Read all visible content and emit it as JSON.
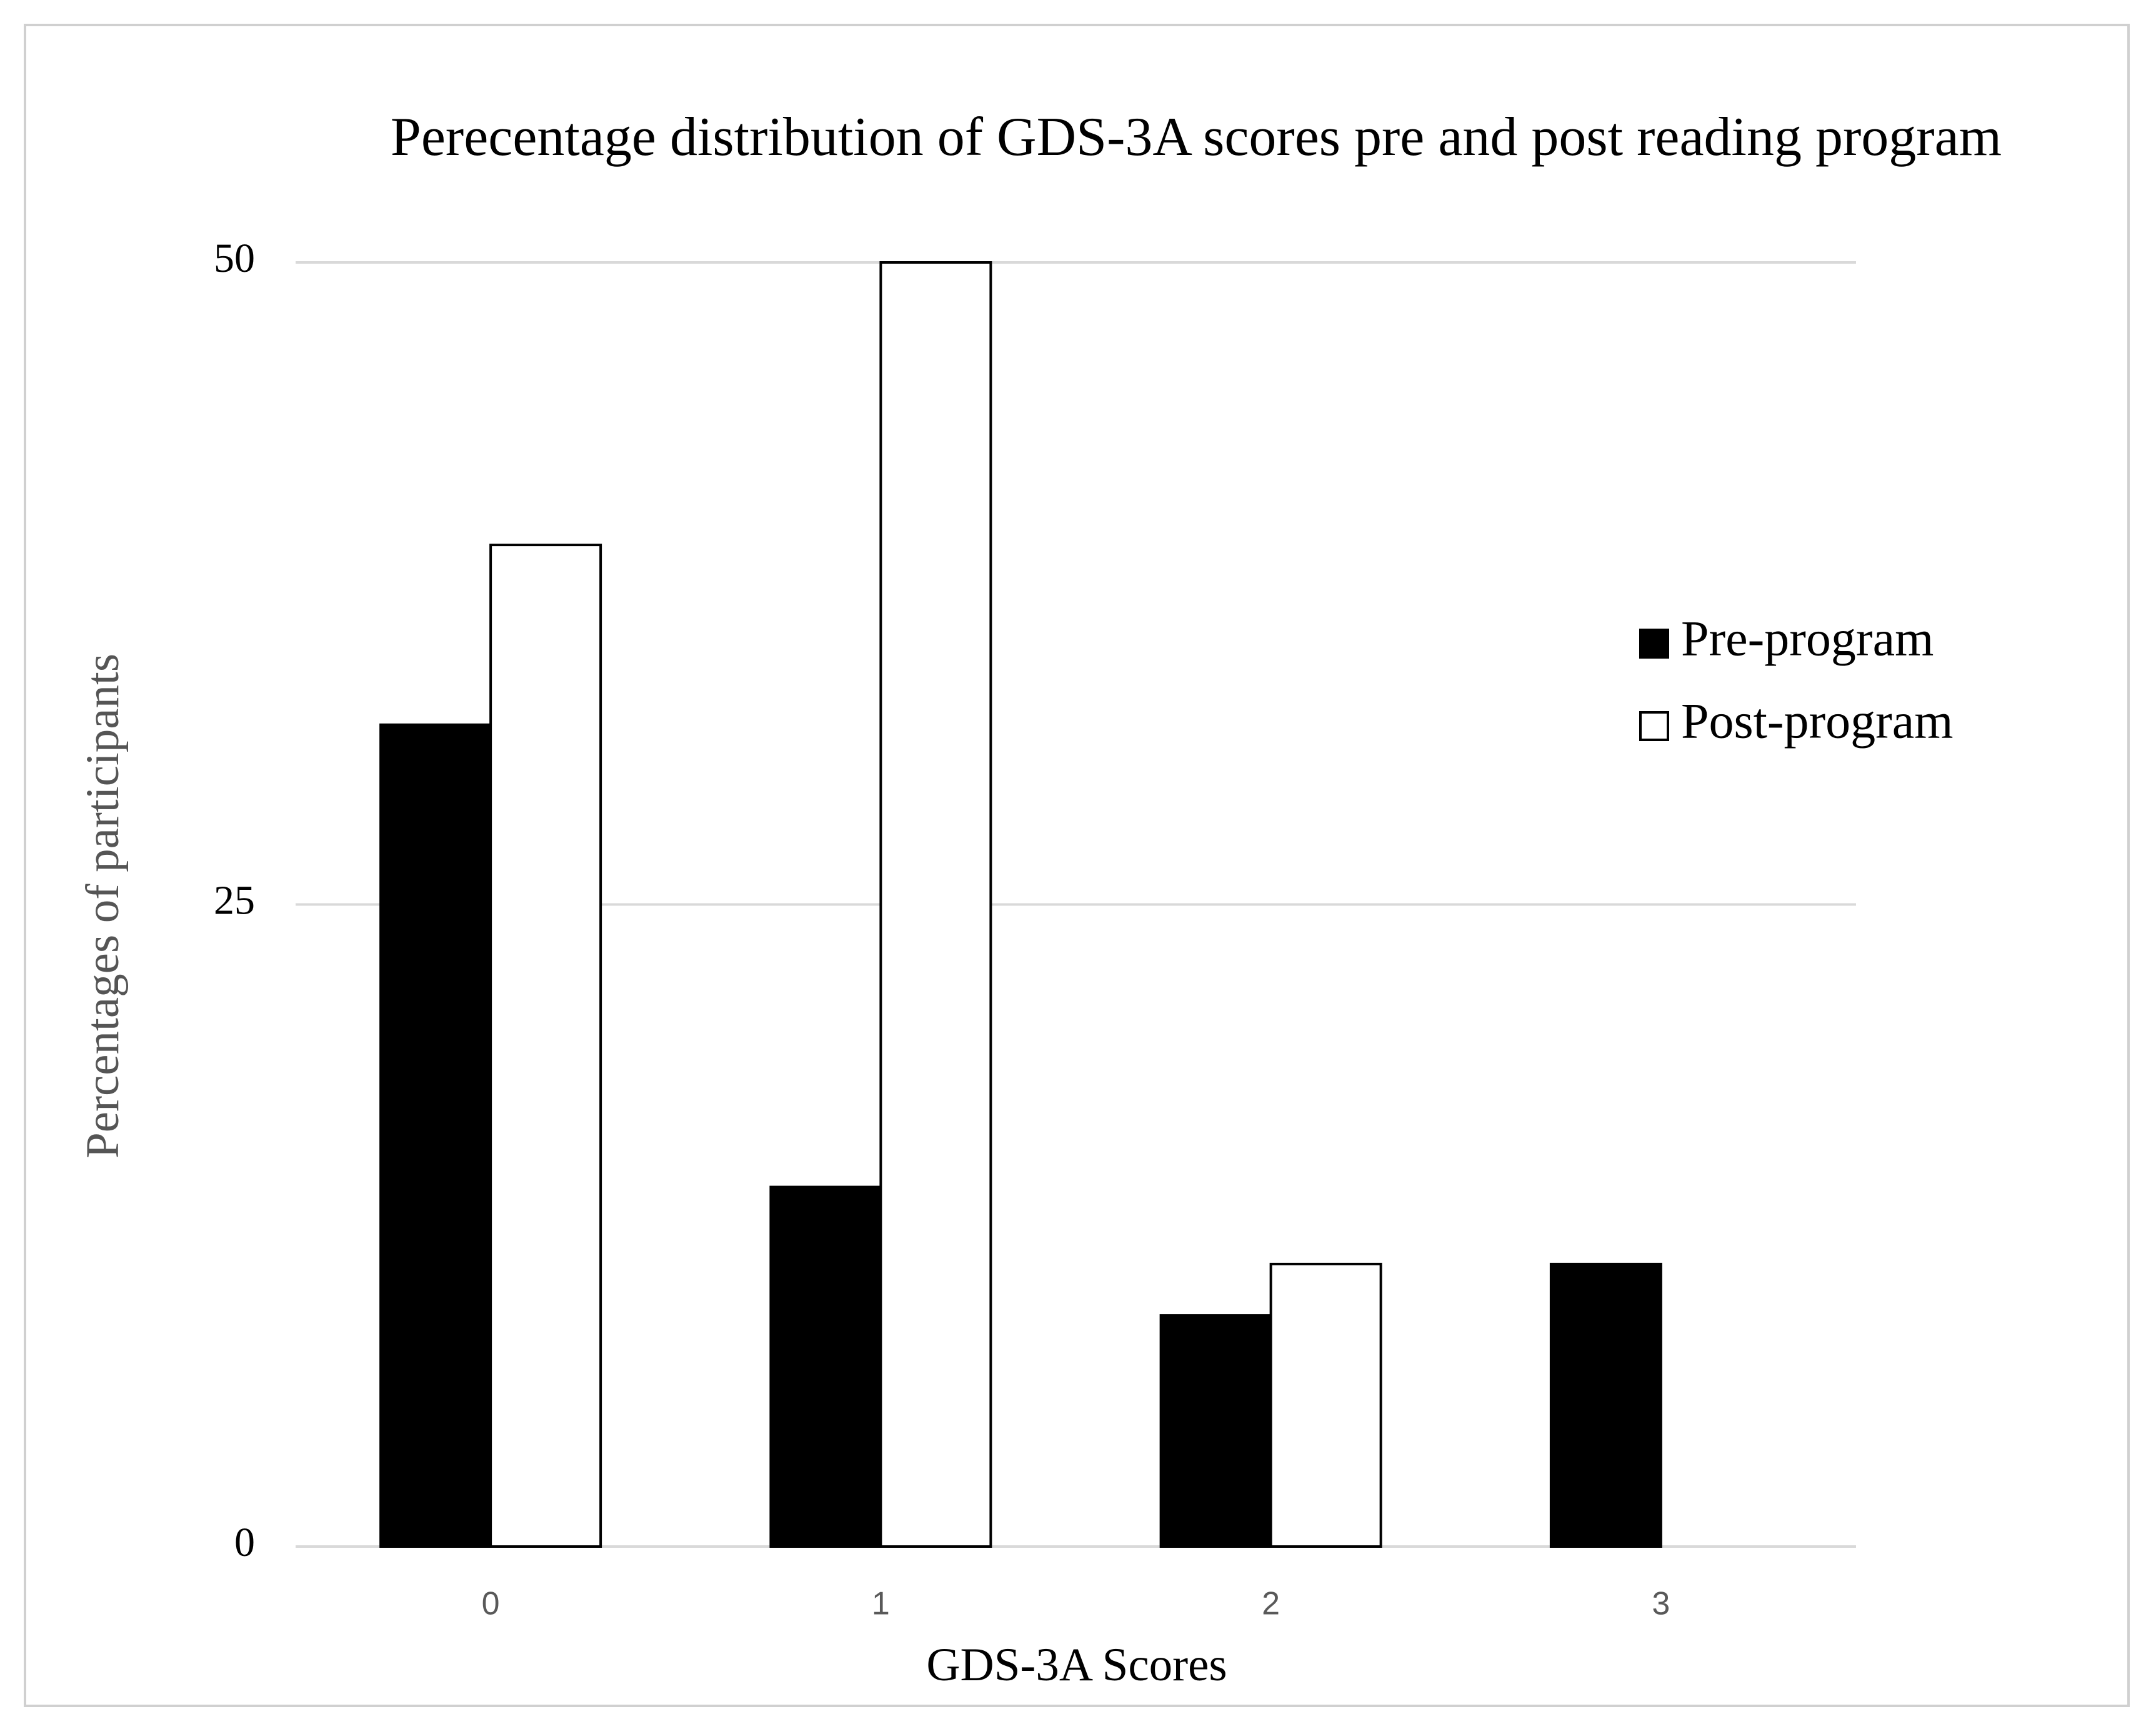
{
  "chart_data": {
    "type": "bar",
    "title": "Perecentage distribution of GDS-3A scores pre and post reading program",
    "x_label": "GDS-3A Scores",
    "y_label": "Percentages of participants",
    "categories": [
      "0",
      "1",
      "2",
      "3"
    ],
    "series": [
      {
        "name": "Pre-program",
        "color": "#000000",
        "values": [
          32,
          14,
          9,
          11
        ]
      },
      {
        "name": "Post-program",
        "color": "#ffffff",
        "values": [
          39,
          50,
          11,
          0
        ]
      }
    ],
    "ylim": [
      0,
      50
    ],
    "yticks": [
      0,
      25,
      50
    ],
    "grid": true,
    "legend": "right"
  }
}
